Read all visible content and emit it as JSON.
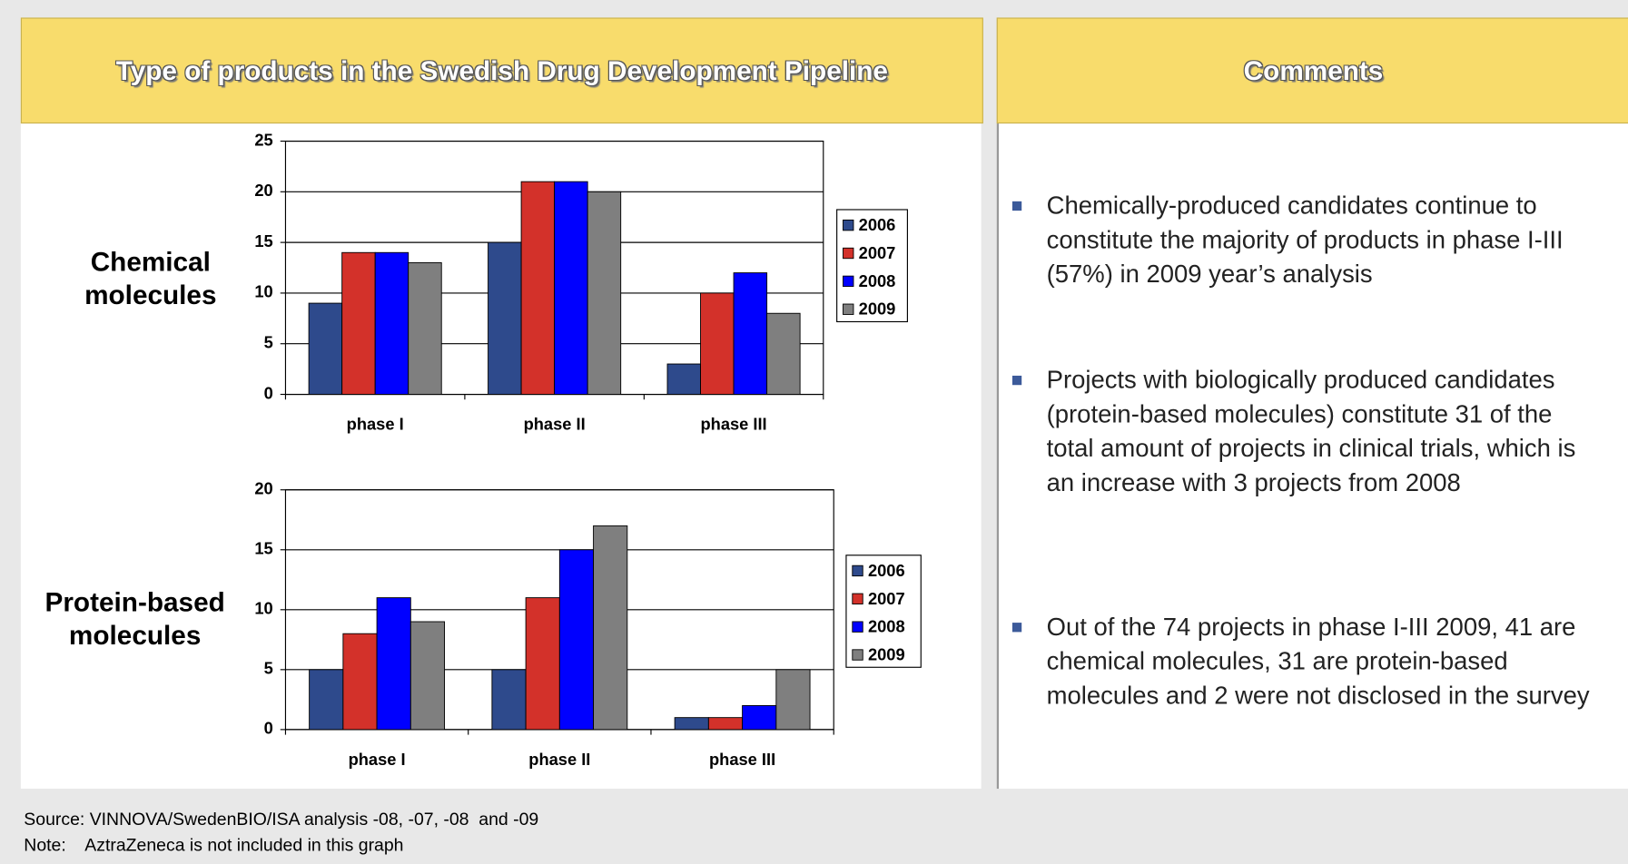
{
  "panels": {
    "left_title": "Type of products in the Swedish Drug Development Pipeline",
    "right_title": "Comments"
  },
  "chart_data": [
    {
      "type": "bar",
      "label": "Chemical molecules",
      "categories": [
        "phase I",
        "phase II",
        "phase III"
      ],
      "series": [
        {
          "name": "2006",
          "color": "#2e4a8c",
          "values": [
            9,
            15,
            3
          ]
        },
        {
          "name": "2007",
          "color": "#d3312a",
          "values": [
            14,
            21,
            10
          ]
        },
        {
          "name": "2008",
          "color": "#0000ff",
          "values": [
            14,
            21,
            12
          ]
        },
        {
          "name": "2009",
          "color": "#7f7f7f",
          "values": [
            13,
            20,
            8
          ]
        }
      ],
      "ylim": [
        0,
        25
      ],
      "yticks": [
        0,
        5,
        10,
        15,
        20,
        25
      ],
      "grid": true,
      "legend": "right"
    },
    {
      "type": "bar",
      "label": "Protein-based molecules",
      "categories": [
        "phase I",
        "phase II",
        "phase III"
      ],
      "series": [
        {
          "name": "2006",
          "color": "#2e4a8c",
          "values": [
            5,
            5,
            1
          ]
        },
        {
          "name": "2007",
          "color": "#d3312a",
          "values": [
            8,
            11,
            1
          ]
        },
        {
          "name": "2008",
          "color": "#0000ff",
          "values": [
            11,
            15,
            2
          ]
        },
        {
          "name": "2009",
          "color": "#7f7f7f",
          "values": [
            9,
            17,
            5
          ]
        }
      ],
      "ylim": [
        0,
        20
      ],
      "yticks": [
        0,
        5,
        10,
        15,
        20
      ],
      "grid": true,
      "legend": "right"
    }
  ],
  "comments": [
    "Chemically-produced candidates continue to constitute the majority of products in phase I-III (57%) in 2009 year’s analysis",
    "Projects with biologically produced candidates (protein-based molecules) constitute 31 of the total amount of projects in clinical trials, which is an increase with 3 projects from 2008",
    "Out of the 74 projects in phase I-III 2009, 41 are chemical molecules, 31 are protein-based molecules and 2 were not disclosed in the survey"
  ],
  "footer": [
    "Source: VINNOVA/SwedenBIO/ISA analysis -08, -07, -08  and -09",
    "Note:    AztraZeneca is not included in this graph"
  ]
}
